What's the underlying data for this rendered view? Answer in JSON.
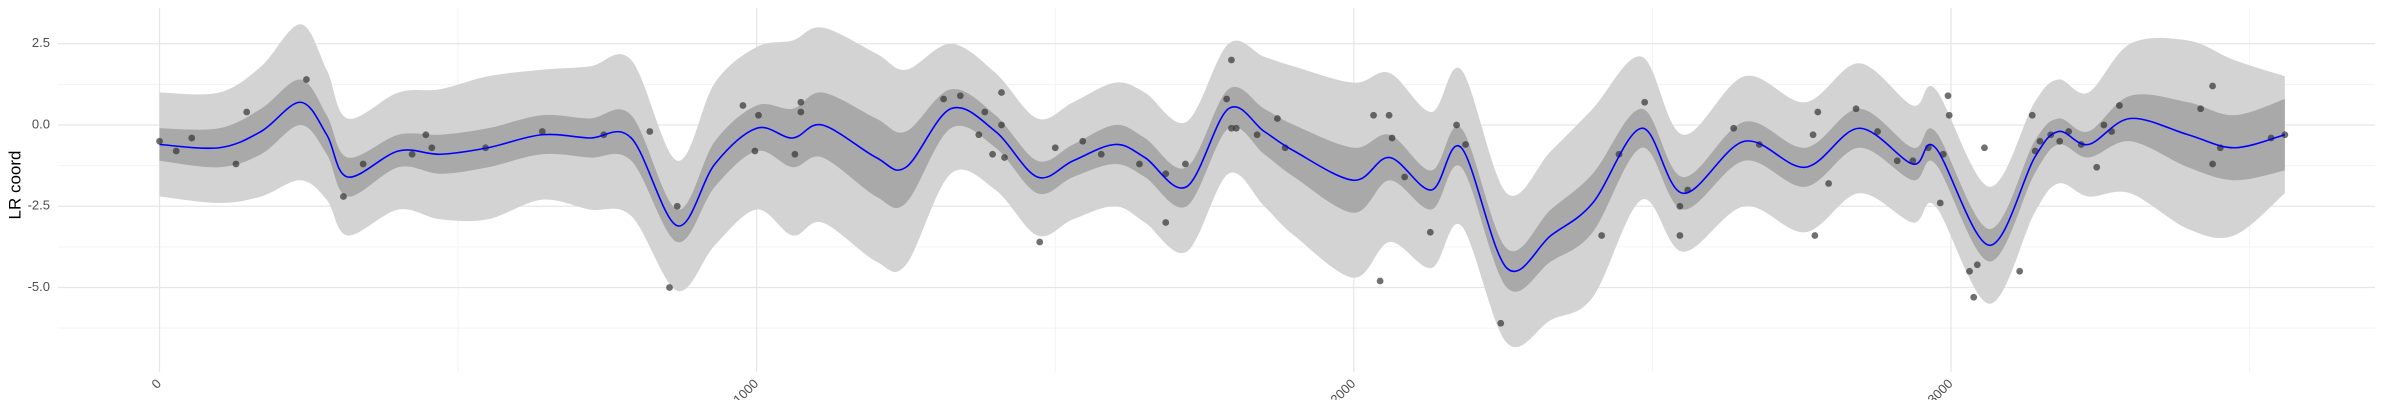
{
  "chart_data": {
    "type": "gp_fit",
    "y_label": "LR coord",
    "xlim": [
      -170,
      3710
    ],
    "ylim": [
      -7.6,
      3.6
    ],
    "xticks": [
      0,
      1000,
      2000,
      3000
    ],
    "yticks": [
      2.5,
      {
        "value": 0,
        "label": "0.0"
      },
      -2.5,
      {
        "value": -5,
        "label": "-5.0"
      }
    ],
    "x_minor_grid": [
      500,
      1500,
      2500,
      3500
    ],
    "y_minor_grid": [
      1.25,
      -1.25,
      -3.75,
      -6.25
    ],
    "grid": true,
    "line_color": "#0000ff",
    "inner_color": "#a9a9a9",
    "outer_color": "#d3d3d3",
    "point_color": "#333333",
    "fit": {
      "x": [
        0,
        100,
        170,
        236,
        280,
        315,
        400,
        470,
        550,
        640,
        720,
        790,
        867,
        930,
        1000,
        1060,
        1110,
        1200,
        1250,
        1325,
        1400,
        1470,
        1530,
        1600,
        1650,
        1720,
        1790,
        1850,
        1900,
        2000,
        2060,
        2130,
        2180,
        2256,
        2330,
        2400,
        2482,
        2551,
        2654,
        2756,
        2846,
        2936,
        2974,
        3064,
        3140,
        3180,
        3230,
        3300,
        3397,
        3474,
        3559
      ],
      "mean": [
        -0.6,
        -0.7,
        -0.2,
        0.7,
        -0.3,
        -1.6,
        -0.8,
        -0.9,
        -0.7,
        -0.3,
        -0.4,
        -0.4,
        -3.1,
        -1.2,
        -0.1,
        -0.4,
        0.0,
        -1.0,
        -1.3,
        0.5,
        -0.2,
        -1.6,
        -1.1,
        -0.6,
        -1.0,
        -1.9,
        0.5,
        -0.2,
        -0.8,
        -1.7,
        -1.0,
        -2.0,
        -0.7,
        -4.4,
        -3.4,
        -2.4,
        -0.1,
        -2.1,
        -0.5,
        -1.3,
        -0.1,
        -1.2,
        -0.7,
        -3.7,
        -1.0,
        -0.2,
        -0.6,
        0.2,
        -0.3,
        -0.7,
        -0.3
      ],
      "inner_lower": [
        -1.1,
        -1.3,
        -0.9,
        0.0,
        -0.9,
        -2.2,
        -1.3,
        -1.5,
        -1.3,
        -0.9,
        -1.0,
        -1.1,
        -3.6,
        -1.9,
        -0.8,
        -1.3,
        -1.0,
        -2.2,
        -2.4,
        -0.1,
        -0.7,
        -2.1,
        -1.6,
        -1.2,
        -1.6,
        -2.5,
        -0.1,
        -0.9,
        -1.6,
        -2.7,
        -1.7,
        -2.6,
        -1.3,
        -5.0,
        -4.2,
        -3.3,
        -0.7,
        -2.6,
        -1.1,
        -1.9,
        -0.7,
        -1.7,
        -1.2,
        -4.2,
        -1.5,
        -0.6,
        -1.0,
        -0.5,
        -1.3,
        -1.7,
        -1.4
      ],
      "inner_upper": [
        -0.1,
        -0.1,
        0.5,
        1.4,
        0.3,
        -1.0,
        -0.3,
        -0.3,
        -0.1,
        0.3,
        0.2,
        0.3,
        -2.6,
        -0.5,
        0.6,
        0.5,
        1.0,
        0.2,
        -0.2,
        1.1,
        0.3,
        -1.1,
        -0.6,
        0.0,
        -0.4,
        -1.3,
        1.1,
        0.5,
        0.0,
        -0.7,
        -0.3,
        -1.4,
        -0.1,
        -3.8,
        -2.6,
        -1.5,
        0.5,
        -1.6,
        0.1,
        -0.7,
        0.5,
        -0.7,
        -0.2,
        -3.2,
        -0.5,
        0.2,
        -0.2,
        0.9,
        0.7,
        0.3,
        0.8
      ],
      "outer_lower": [
        -2.2,
        -2.4,
        -2.2,
        -1.7,
        -2.3,
        -3.4,
        -2.6,
        -2.9,
        -2.9,
        -2.3,
        -2.6,
        -2.8,
        -5.1,
        -3.7,
        -2.6,
        -3.4,
        -3.0,
        -4.2,
        -4.3,
        -1.5,
        -2.0,
        -3.4,
        -2.9,
        -2.5,
        -3.0,
        -3.9,
        -1.5,
        -2.5,
        -3.4,
        -4.7,
        -3.6,
        -4.4,
        -3.1,
        -6.7,
        -6.0,
        -5.3,
        -2.3,
        -3.9,
        -2.5,
        -3.3,
        -2.1,
        -3.0,
        -2.5,
        -5.5,
        -2.7,
        -1.8,
        -2.2,
        -2.1,
        -3.2,
        -3.4,
        -2.1
      ],
      "outer_upper": [
        1.0,
        1.0,
        1.8,
        3.1,
        1.7,
        0.2,
        1.0,
        1.1,
        1.5,
        1.7,
        1.8,
        2.0,
        -1.1,
        1.3,
        2.4,
        2.6,
        3.0,
        2.2,
        1.7,
        2.5,
        1.6,
        0.2,
        0.7,
        1.3,
        1.0,
        0.1,
        2.5,
        2.1,
        1.8,
        1.3,
        1.6,
        0.4,
        1.7,
        -2.1,
        -0.8,
        0.5,
        2.1,
        -0.3,
        1.5,
        0.7,
        1.9,
        0.6,
        1.1,
        -1.9,
        0.7,
        1.4,
        1.0,
        2.5,
        2.6,
        2.0,
        1.5
      ]
    },
    "points": {
      "x": [
        0,
        28,
        54,
        128,
        146,
        246,
        308,
        341,
        423,
        446,
        456,
        546,
        641,
        744,
        821,
        854,
        867,
        977,
        997,
        1003,
        1064,
        1074,
        1074,
        1313,
        1341,
        1372,
        1382,
        1395,
        1410,
        1410,
        1415,
        1474,
        1500,
        1546,
        1577,
        1641,
        1685,
        1685,
        1718,
        1795,
        1795,
        1787,
        1803,
        1838,
        1872,
        1885,
        2033,
        2044,
        2059,
        2064,
        2085,
        2128,
        2172,
        2187,
        2246,
        2415,
        2444,
        2487,
        2546,
        2546,
        2559,
        2636,
        2679,
        2769,
        2772,
        2777,
        2795,
        2841,
        2877,
        2910,
        2936,
        2962,
        2982,
        2987,
        2995,
        2997,
        3031,
        3038,
        3044,
        3056,
        3115,
        3136,
        3141,
        3149,
        3167,
        3182,
        3197,
        3218,
        3244,
        3256,
        3269,
        3282,
        3418,
        3438,
        3438,
        3451,
        3536,
        3559
      ],
      "y": [
        -0.5,
        -0.8,
        -0.4,
        -1.2,
        0.4,
        1.4,
        -2.2,
        -1.2,
        -0.9,
        -0.3,
        -0.7,
        -0.7,
        -0.2,
        -0.3,
        -0.2,
        -5.0,
        -2.5,
        0.6,
        -0.8,
        0.3,
        -0.9,
        0.7,
        0.4,
        0.8,
        0.9,
        -0.3,
        0.4,
        -0.9,
        1.0,
        0.0,
        -1.0,
        -3.6,
        -0.7,
        -0.5,
        -0.9,
        -1.2,
        -3.0,
        -1.5,
        -1.2,
        2.0,
        -0.1,
        0.8,
        -0.1,
        -0.3,
        0.2,
        -0.7,
        0.3,
        -4.8,
        0.3,
        -0.4,
        -1.6,
        -3.3,
        0.0,
        -0.6,
        -6.1,
        -3.4,
        -0.9,
        0.7,
        -2.5,
        -3.4,
        -2.0,
        -0.1,
        -0.6,
        -0.3,
        -3.4,
        0.4,
        -1.8,
        0.5,
        -0.2,
        -1.1,
        -1.1,
        -0.7,
        -2.4,
        -0.9,
        0.9,
        0.3,
        -4.5,
        -5.3,
        -4.3,
        -0.7,
        -4.5,
        0.3,
        -0.8,
        -0.5,
        -0.3,
        -0.5,
        -0.2,
        -0.6,
        -1.3,
        0.0,
        -0.2,
        0.6,
        0.5,
        1.2,
        -1.2,
        -0.7,
        -0.4,
        -0.3
      ]
    }
  }
}
